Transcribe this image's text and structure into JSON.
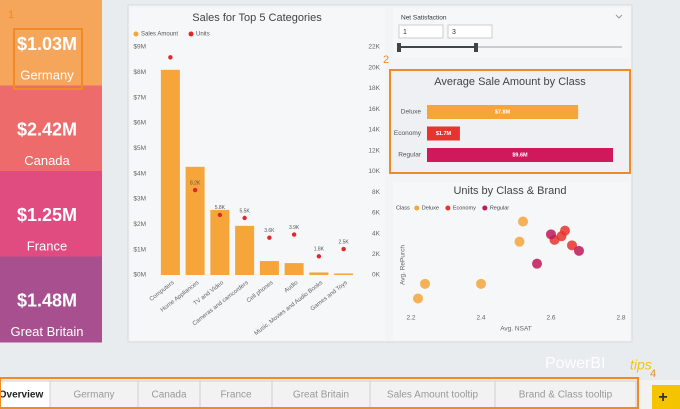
{
  "cards": [
    {
      "value": "$1.03M",
      "label": "Germany",
      "color": "#f5a65b"
    },
    {
      "value": "$2.42M",
      "label": "Canada",
      "color": "#ee6b6b"
    },
    {
      "value": "$1.25M",
      "label": "France",
      "color": "#e04b80"
    },
    {
      "value": "$1.48M",
      "label": "Great Britain",
      "color": "#a8508f"
    }
  ],
  "annotations": [
    "1",
    "2",
    "4"
  ],
  "sales_chart": {
    "type": "bar",
    "title": "Sales for Top 5 Categories",
    "categories": [
      "Computers",
      "Home Appliances",
      "TV and Video",
      "Cameras and camcorders",
      "Cell phones",
      "Audio",
      "Music, Movies and Audio Books",
      "Games and Toys"
    ],
    "series": [
      {
        "name": "Sales Amount",
        "color": "#f5a53a",
        "values": [
          8100000,
          4270000,
          2570000,
          1940000,
          550000,
          470000,
          100000,
          60000
        ]
      },
      {
        "name": "Units",
        "color": "#e4262b",
        "axis": "y2",
        "values": [
          21000,
          8200,
          5800,
          5500,
          3600,
          3900,
          1800,
          2500
        ],
        "value_labels": [
          null,
          "8.2K",
          "5.8K",
          "5.5K",
          "3.6K",
          "3.9K",
          "1.8K",
          "2.5K"
        ]
      }
    ],
    "ylim": [
      0,
      9000000
    ],
    "yticks": [
      {
        "value": 0,
        "label": "$0M"
      },
      {
        "value": 1000000,
        "label": "$1M"
      },
      {
        "value": 2000000,
        "label": "$2M"
      },
      {
        "value": 3000000,
        "label": "$3M"
      },
      {
        "value": 4000000,
        "label": "$4M"
      },
      {
        "value": 5000000,
        "label": "$5M"
      },
      {
        "value": 6000000,
        "label": "$6M"
      },
      {
        "value": 7000000,
        "label": "$7M"
      },
      {
        "value": 8000000,
        "label": "$8M"
      },
      {
        "value": 9000000,
        "label": "$9M"
      }
    ],
    "y2lim": [
      0,
      22000
    ],
    "y2ticks": [
      {
        "value": 0,
        "label": "0K"
      },
      {
        "value": 2000,
        "label": "2K"
      },
      {
        "value": 4000,
        "label": "4K"
      },
      {
        "value": 6000,
        "label": "6K"
      },
      {
        "value": 8000,
        "label": "8K"
      },
      {
        "value": 10000,
        "label": "10K"
      },
      {
        "value": 12000,
        "label": "12K"
      },
      {
        "value": 14000,
        "label": "14K"
      },
      {
        "value": 16000,
        "label": "16K"
      },
      {
        "value": 18000,
        "label": "18K"
      },
      {
        "value": 20000,
        "label": "20K"
      },
      {
        "value": 22000,
        "label": "22K"
      }
    ]
  },
  "slicer": {
    "title": "Net Satisfaction",
    "min": 1,
    "max": 3
  },
  "avg_chart": {
    "type": "bar",
    "title": "Average Sale Amount by Class",
    "categories": [
      "Deluxe",
      "Economy",
      "Regular"
    ],
    "values": [
      7800000,
      1700000,
      9600000
    ],
    "value_labels": [
      "$7.8M",
      "$1.7M",
      "$9.6M"
    ],
    "colors": [
      "#f5a53a",
      "#e8342f",
      "#d0195c"
    ],
    "xlim": [
      0,
      9600000
    ]
  },
  "scatter_chart": {
    "type": "scatter",
    "title": "Units by Class & Brand",
    "legend_title": "Class",
    "x_label": "Avg. NSAT",
    "y_label": "Avg. RePurch",
    "xlim": [
      2.2,
      2.8
    ],
    "xticks": [
      2.2,
      2.4,
      2.6,
      2.8
    ],
    "ylim": [
      1.0,
      1.6
    ],
    "series": [
      {
        "name": "Deluxe",
        "color": "#f5a53a",
        "x": [
          2.22,
          2.24,
          2.4,
          2.51,
          2.52
        ],
        "values": [
          1.09,
          1.17,
          1.17,
          1.4,
          1.51
        ]
      },
      {
        "name": "Economy",
        "color": "#e8342f",
        "x": [
          2.61,
          2.64,
          2.66,
          2.63
        ],
        "values": [
          1.41,
          1.46,
          1.38,
          1.43
        ]
      },
      {
        "name": "Regular",
        "color": "#c0175a",
        "x": [
          2.56,
          2.68,
          2.6
        ],
        "values": [
          1.28,
          1.35,
          1.44
        ]
      }
    ]
  },
  "watermark": {
    "brand": "PowerBI",
    "suffix": "tips"
  },
  "tabs": [
    "Overview",
    "Germany",
    "Canada",
    "France",
    "Great Britain",
    "Sales Amount tooltip",
    "Brand & Class tooltip"
  ],
  "add_button": "+"
}
